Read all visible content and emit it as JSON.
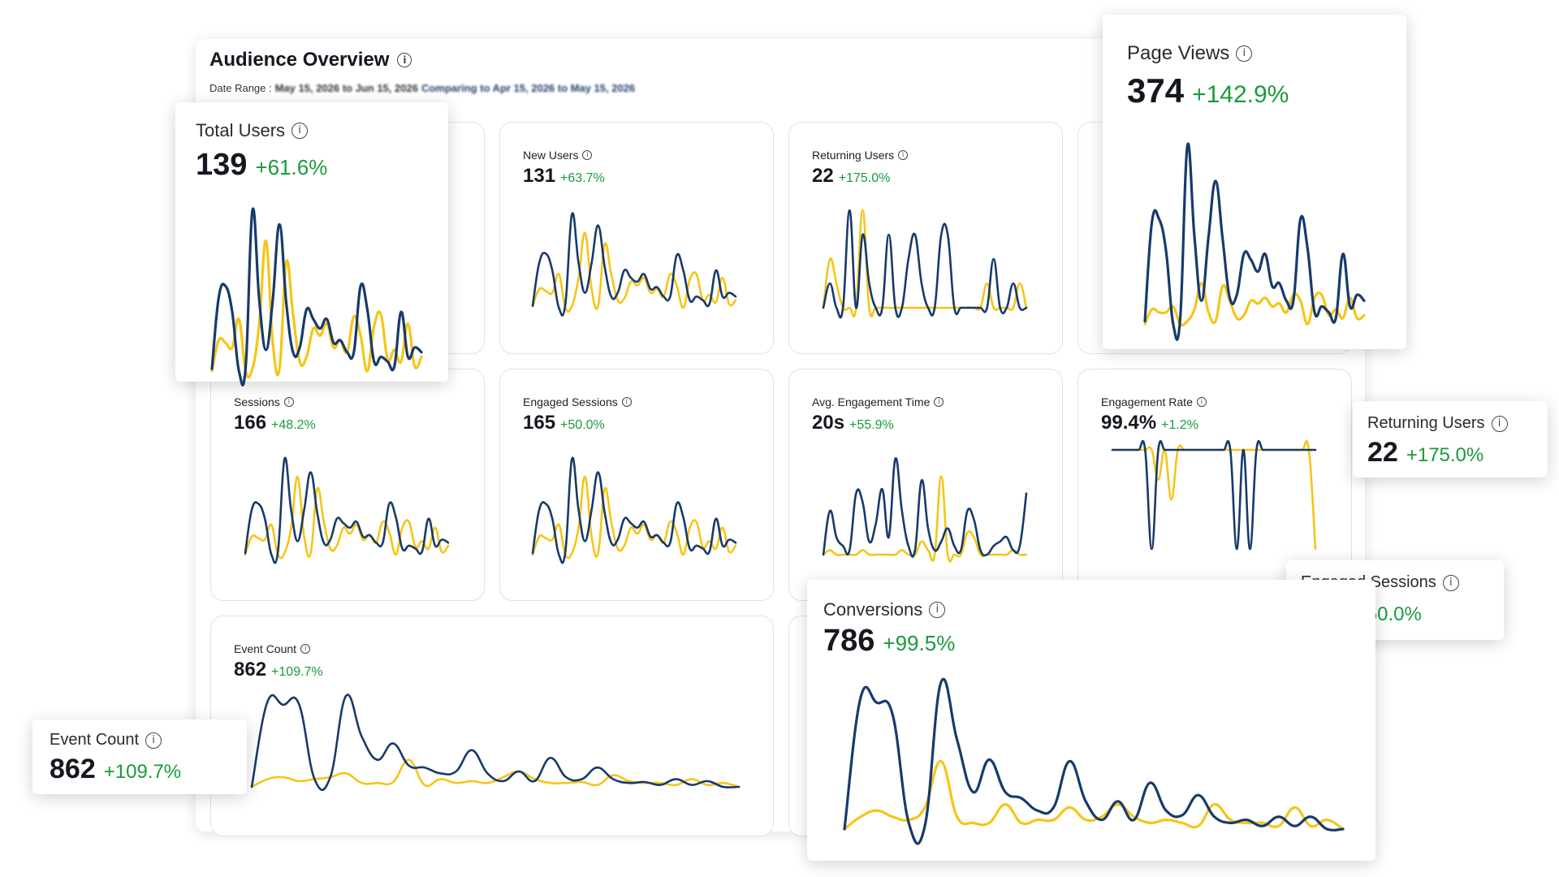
{
  "dashboard": {
    "title": "Audience Overview",
    "date_range_label": "Date Range :",
    "date_range_value": "May 15, 2026 to Jun 15, 2026",
    "comparing_text": "Comparing to Apr 15, 2026 to May 15, 2026"
  },
  "colors": {
    "current_series": "#173a6b",
    "previous_series": "#f5c518",
    "positive_change": "#1a9a3c"
  },
  "icons": {
    "info": "info-circle-icon"
  },
  "metrics": {
    "total_users": {
      "label": "Total Users",
      "value": "139",
      "change": "+61.6%"
    },
    "new_users": {
      "label": "New Users",
      "value": "131",
      "change": "+63.7%"
    },
    "returning_users": {
      "label": "Returning Users",
      "value": "22",
      "change": "+175.0%"
    },
    "page_views": {
      "label": "Page Views",
      "value": "374",
      "change": "+142.9%"
    },
    "sessions": {
      "label": "Sessions",
      "value": "166",
      "change": "+48.2%"
    },
    "engaged_sessions": {
      "label": "Engaged Sessions",
      "value": "165",
      "change": "+50.0%"
    },
    "avg_engagement_time": {
      "label": "Avg. Engagement Time",
      "value": "20s",
      "change": "+55.9%"
    },
    "engagement_rate": {
      "label": "Engagement Rate",
      "value": "99.4%",
      "change": "+1.2%"
    },
    "event_count": {
      "label": "Event Count",
      "value": "862",
      "change": "+109.7%"
    },
    "conversions": {
      "label": "Conversions",
      "value": "786",
      "change": "+99.5%"
    }
  },
  "sparklines": {
    "total_users": {
      "current": [
        1,
        31,
        36,
        25,
        0,
        2,
        68,
        30,
        9,
        30,
        62,
        29,
        8,
        10,
        26,
        22,
        18,
        22,
        12,
        13,
        8,
        8,
        36,
        26,
        4,
        6,
        4,
        2,
        25,
        6,
        10,
        8
      ],
      "previous": [
        0,
        13,
        12,
        10,
        22,
        0,
        1,
        20,
        55,
        12,
        1,
        46,
        24,
        4,
        6,
        18,
        15,
        20,
        10,
        13,
        8,
        23,
        15,
        0,
        19,
        24,
        5,
        9,
        4,
        20,
        2,
        6
      ]
    },
    "new_users": {
      "current": [
        1,
        24,
        29,
        20,
        0,
        2,
        50,
        24,
        8,
        24,
        44,
        22,
        6,
        8,
        20,
        16,
        14,
        18,
        10,
        11,
        6,
        6,
        28,
        20,
        4,
        6,
        4,
        2,
        20,
        6,
        8,
        6
      ],
      "previous": [
        1,
        10,
        9,
        8,
        18,
        0,
        1,
        16,
        40,
        10,
        1,
        34,
        18,
        4,
        5,
        14,
        12,
        16,
        8,
        10,
        6,
        18,
        12,
        0,
        15,
        18,
        4,
        7,
        3,
        16,
        2,
        4
      ]
    },
    "returning_users": {
      "current": [
        0,
        1,
        0,
        0,
        4,
        0,
        3,
        1,
        0,
        0,
        3,
        0,
        0,
        2,
        3,
        1,
        0,
        0,
        3,
        3,
        0,
        0,
        0,
        0,
        0,
        0,
        2,
        0,
        0,
        1,
        0,
        0
      ],
      "previous": [
        0,
        2,
        1,
        0,
        0,
        0,
        4,
        0,
        0,
        0,
        0,
        0,
        0,
        0,
        0,
        0,
        0,
        0,
        0,
        0,
        0,
        0,
        0,
        0,
        0,
        1,
        0,
        0,
        0,
        0,
        1,
        0
      ]
    },
    "page_views": {
      "current": [
        1,
        35,
        36,
        25,
        0,
        2,
        61,
        30,
        8,
        30,
        49,
        29,
        9,
        10,
        24,
        22,
        18,
        24,
        13,
        14,
        8,
        8,
        36,
        26,
        4,
        6,
        4,
        2,
        24,
        6,
        10,
        8
      ],
      "previous": [
        0,
        5,
        4,
        4,
        6,
        0,
        1,
        5,
        14,
        4,
        1,
        13,
        8,
        2,
        3,
        8,
        7,
        9,
        6,
        7,
        4,
        10,
        8,
        0,
        9,
        10,
        3,
        5,
        2,
        9,
        2,
        3
      ]
    },
    "sessions": {
      "current": [
        1,
        30,
        34,
        24,
        0,
        2,
        64,
        30,
        9,
        30,
        55,
        28,
        8,
        10,
        24,
        21,
        18,
        22,
        12,
        13,
        8,
        8,
        34,
        25,
        4,
        6,
        4,
        2,
        24,
        6,
        10,
        8
      ],
      "previous": [
        0,
        12,
        11,
        10,
        20,
        0,
        1,
        18,
        52,
        12,
        1,
        44,
        22,
        4,
        6,
        18,
        14,
        20,
        10,
        13,
        8,
        22,
        15,
        0,
        18,
        22,
        5,
        9,
        4,
        18,
        2,
        6
      ]
    },
    "engaged_sessions": {
      "current": [
        1,
        30,
        34,
        24,
        0,
        2,
        64,
        30,
        9,
        30,
        55,
        28,
        8,
        10,
        24,
        21,
        18,
        22,
        12,
        13,
        8,
        8,
        34,
        25,
        4,
        6,
        4,
        2,
        24,
        6,
        10,
        8
      ],
      "previous": [
        0,
        12,
        11,
        10,
        20,
        0,
        1,
        18,
        52,
        12,
        1,
        44,
        22,
        4,
        6,
        18,
        14,
        20,
        10,
        13,
        8,
        22,
        15,
        0,
        18,
        22,
        5,
        9,
        4,
        18,
        2,
        6
      ]
    },
    "avg_engagement_time": {
      "current": [
        0,
        10,
        4,
        2,
        1,
        14,
        12,
        3,
        7,
        15,
        4,
        22,
        10,
        2,
        1,
        17,
        6,
        1,
        3,
        6,
        2,
        1,
        10,
        8,
        1,
        0,
        2,
        3,
        4,
        1,
        2,
        14
      ],
      "previous": [
        0,
        1,
        0,
        0,
        0,
        0,
        1,
        0,
        0,
        0,
        0,
        0,
        1,
        0,
        0,
        3,
        1,
        0,
        18,
        0,
        0,
        0,
        5,
        4,
        0,
        0,
        0,
        0,
        0,
        1,
        0,
        0
      ]
    },
    "engagement_rate": {
      "current": [
        100,
        100,
        100,
        100,
        100,
        100,
        0,
        100,
        100,
        100,
        100,
        100,
        100,
        100,
        100,
        100,
        100,
        100,
        100,
        0,
        100,
        0,
        100,
        100,
        100,
        100,
        100,
        100,
        100,
        100,
        100,
        100
      ],
      "previous": [
        100,
        100,
        100,
        100,
        100,
        100,
        100,
        70,
        100,
        50,
        100,
        100,
        100,
        100,
        100,
        100,
        100,
        100,
        100,
        100,
        100,
        100,
        100,
        100,
        100,
        100,
        100,
        100,
        100,
        100,
        100,
        0
      ]
    },
    "event_count": {
      "current": [
        0,
        88,
        85,
        86,
        8,
        10,
        94,
        52,
        28,
        45,
        22,
        20,
        14,
        16,
        38,
        14,
        6,
        16,
        6,
        30,
        10,
        8,
        20,
        8,
        4,
        5,
        2,
        8,
        2,
        6,
        0,
        0
      ],
      "previous": [
        0,
        8,
        10,
        6,
        8,
        10,
        14,
        4,
        4,
        5,
        28,
        2,
        8,
        4,
        6,
        4,
        10,
        16,
        8,
        4,
        4,
        5,
        2,
        12,
        6,
        4,
        4,
        2,
        8,
        2,
        4,
        0
      ]
    },
    "conversions": {
      "current": [
        0,
        85,
        82,
        74,
        4,
        2,
        95,
        58,
        24,
        45,
        24,
        20,
        12,
        14,
        44,
        18,
        6,
        18,
        6,
        30,
        12,
        9,
        22,
        8,
        4,
        6,
        2,
        8,
        2,
        8,
        0,
        0
      ],
      "previous": [
        0,
        8,
        12,
        8,
        6,
        14,
        44,
        8,
        4,
        4,
        16,
        4,
        6,
        6,
        14,
        6,
        8,
        16,
        8,
        4,
        6,
        4,
        2,
        16,
        6,
        4,
        4,
        2,
        14,
        2,
        6,
        0
      ]
    }
  }
}
